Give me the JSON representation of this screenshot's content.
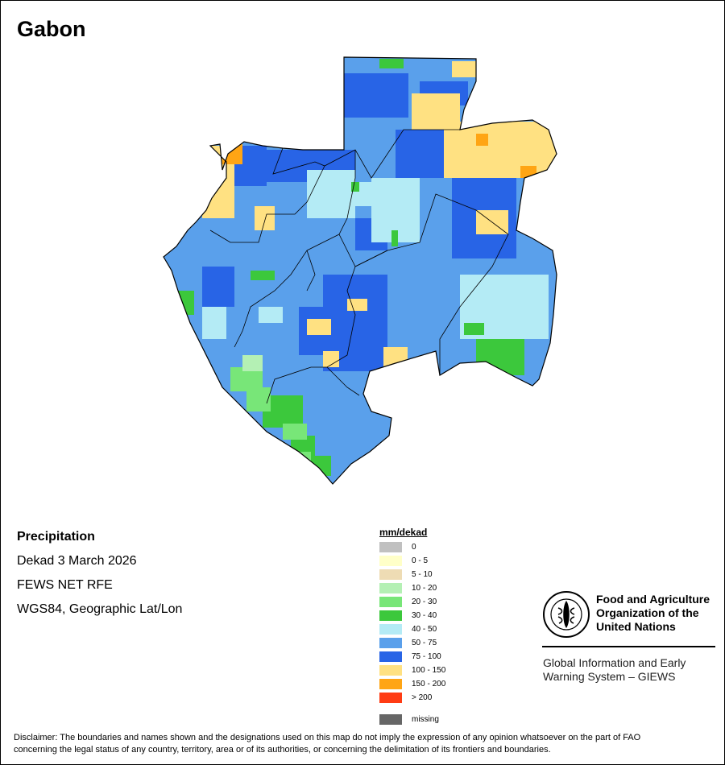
{
  "title": "Gabon",
  "info": {
    "line1": "Precipitation",
    "line2": "Dekad 3 March 2026",
    "line3": "FEWS NET RFE",
    "line4": "WGS84, Geographic Lat/Lon"
  },
  "legend": {
    "title": "mm/dekad",
    "items": [
      {
        "label": "0",
        "color": "#c0c0c0"
      },
      {
        "label": "0 - 5",
        "color": "#ffffc8"
      },
      {
        "label": "5 - 10",
        "color": "#eedcb4"
      },
      {
        "label": "10 - 20",
        "color": "#b4f0b4"
      },
      {
        "label": "20 - 30",
        "color": "#78e678"
      },
      {
        "label": "30 - 40",
        "color": "#3cc83c"
      },
      {
        "label": "40 - 50",
        "color": "#b4ebf5"
      },
      {
        "label": "50 - 75",
        "color": "#5aa0eb"
      },
      {
        "label": "75 - 100",
        "color": "#2864e6"
      },
      {
        "label": "100 - 150",
        "color": "#ffe182"
      },
      {
        "label": "150 - 200",
        "color": "#ffa514"
      },
      {
        "label": "> 200",
        "color": "#ff3c14"
      }
    ],
    "missing": {
      "label": "missing",
      "color": "#666666"
    }
  },
  "fao": {
    "name_line1": "Food and Agriculture",
    "name_line2": "Organization of the",
    "name_line3": "United Nations",
    "giews_line1": "Global Information and Early",
    "giews_line2": "Warning System – GIEWS"
  },
  "disclaimer": {
    "line1": "Disclaimer: The boundaries and names shown and the designations used on this map do not imply the expression of any opinion whatsoever on the part of FAO",
    "line2": "concerning the legal status of any country, territory, area or of its authorities, or concerning the delimitation of its frontiers and boundaries."
  }
}
